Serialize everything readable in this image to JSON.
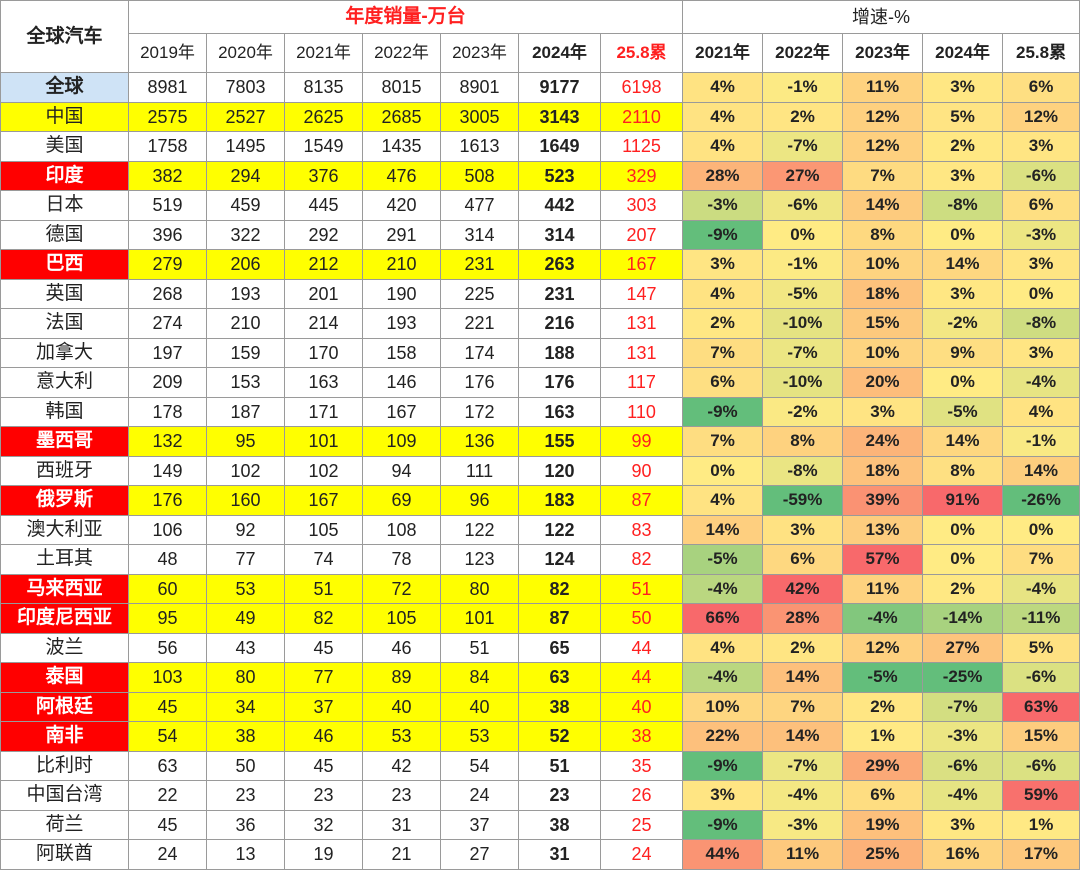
{
  "chart_data": {
    "type": "table",
    "corner_label": "全球汽车",
    "sales_title": "年度销量-万台",
    "growth_title": "增速-%",
    "sales_columns": [
      "2019年",
      "2020年",
      "2021年",
      "2022年",
      "2023年",
      "2024年",
      "25.8累"
    ],
    "growth_columns": [
      "2021年",
      "2022年",
      "2023年",
      "2024年",
      "25.8累"
    ],
    "rows": [
      {
        "name": "全球",
        "style": "world",
        "sales": [
          8981,
          7803,
          8135,
          8015,
          8901,
          9177,
          6198
        ],
        "growth": [
          "4%",
          "-1%",
          "11%",
          "3%",
          "6%"
        ]
      },
      {
        "name": "中国",
        "style": "yellow",
        "sales": [
          2575,
          2527,
          2625,
          2685,
          3005,
          3143,
          2110
        ],
        "growth": [
          "4%",
          "2%",
          "12%",
          "5%",
          "12%"
        ]
      },
      {
        "name": "美国",
        "style": "plain",
        "sales": [
          1758,
          1495,
          1549,
          1435,
          1613,
          1649,
          1125
        ],
        "growth": [
          "4%",
          "-7%",
          "12%",
          "2%",
          "3%"
        ]
      },
      {
        "name": "印度",
        "style": "red",
        "sales": [
          382,
          294,
          376,
          476,
          508,
          523,
          329
        ],
        "growth": [
          "28%",
          "27%",
          "7%",
          "3%",
          "-6%"
        ]
      },
      {
        "name": "日本",
        "style": "plain",
        "sales": [
          519,
          459,
          445,
          420,
          477,
          442,
          303
        ],
        "growth": [
          "-3%",
          "-6%",
          "14%",
          "-8%",
          "6%"
        ]
      },
      {
        "name": "德国",
        "style": "plain",
        "sales": [
          396,
          322,
          292,
          291,
          314,
          314,
          207
        ],
        "growth": [
          "-9%",
          "0%",
          "8%",
          "0%",
          "-3%"
        ]
      },
      {
        "name": "巴西",
        "style": "red",
        "sales": [
          279,
          206,
          212,
          210,
          231,
          263,
          167
        ],
        "growth": [
          "3%",
          "-1%",
          "10%",
          "14%",
          "3%"
        ]
      },
      {
        "name": "英国",
        "style": "plain",
        "sales": [
          268,
          193,
          201,
          190,
          225,
          231,
          147
        ],
        "growth": [
          "4%",
          "-5%",
          "18%",
          "3%",
          "0%"
        ]
      },
      {
        "name": "法国",
        "style": "plain",
        "sales": [
          274,
          210,
          214,
          193,
          221,
          216,
          131
        ],
        "growth": [
          "2%",
          "-10%",
          "15%",
          "-2%",
          "-8%"
        ]
      },
      {
        "name": "加拿大",
        "style": "plain",
        "sales": [
          197,
          159,
          170,
          158,
          174,
          188,
          131
        ],
        "growth": [
          "7%",
          "-7%",
          "10%",
          "9%",
          "3%"
        ]
      },
      {
        "name": "意大利",
        "style": "plain",
        "sales": [
          209,
          153,
          163,
          146,
          176,
          176,
          117
        ],
        "growth": [
          "6%",
          "-10%",
          "20%",
          "0%",
          "-4%"
        ]
      },
      {
        "name": "韩国",
        "style": "plain",
        "sales": [
          178,
          187,
          171,
          167,
          172,
          163,
          110
        ],
        "growth": [
          "-9%",
          "-2%",
          "3%",
          "-5%",
          "4%"
        ]
      },
      {
        "name": "墨西哥",
        "style": "red",
        "sales": [
          132,
          95,
          101,
          109,
          136,
          155,
          99
        ],
        "growth": [
          "7%",
          "8%",
          "24%",
          "14%",
          "-1%"
        ]
      },
      {
        "name": "西班牙",
        "style": "plain",
        "sales": [
          149,
          102,
          102,
          94,
          111,
          120,
          90
        ],
        "growth": [
          "0%",
          "-8%",
          "18%",
          "8%",
          "14%"
        ]
      },
      {
        "name": "俄罗斯",
        "style": "red",
        "sales": [
          176,
          160,
          167,
          69,
          96,
          183,
          87
        ],
        "growth": [
          "4%",
          "-59%",
          "39%",
          "91%",
          "-26%"
        ]
      },
      {
        "name": "澳大利亚",
        "style": "plain",
        "sales": [
          106,
          92,
          105,
          108,
          122,
          122,
          83
        ],
        "growth": [
          "14%",
          "3%",
          "13%",
          "0%",
          "0%"
        ]
      },
      {
        "name": "土耳其",
        "style": "plain",
        "sales": [
          48,
          77,
          74,
          78,
          123,
          124,
          82
        ],
        "growth": [
          "-5%",
          "6%",
          "57%",
          "0%",
          "7%"
        ]
      },
      {
        "name": "马来西亚",
        "style": "red",
        "sales": [
          60,
          53,
          51,
          72,
          80,
          82,
          51
        ],
        "growth": [
          "-4%",
          "42%",
          "11%",
          "2%",
          "-4%"
        ]
      },
      {
        "name": "印度尼西亚",
        "style": "red",
        "sales": [
          95,
          49,
          82,
          105,
          101,
          87,
          50
        ],
        "growth": [
          "66%",
          "28%",
          "-4%",
          "-14%",
          "-11%"
        ]
      },
      {
        "name": "波兰",
        "style": "plain",
        "sales": [
          56,
          43,
          45,
          46,
          51,
          65,
          44
        ],
        "growth": [
          "4%",
          "2%",
          "12%",
          "27%",
          "5%"
        ]
      },
      {
        "name": "泰国",
        "style": "red",
        "sales": [
          103,
          80,
          77,
          89,
          84,
          63,
          44
        ],
        "growth": [
          "-4%",
          "14%",
          "-5%",
          "-25%",
          "-6%"
        ]
      },
      {
        "name": "阿根廷",
        "style": "red",
        "sales": [
          45,
          34,
          37,
          40,
          40,
          38,
          40
        ],
        "growth": [
          "10%",
          "7%",
          "2%",
          "-7%",
          "63%"
        ]
      },
      {
        "name": "南非",
        "style": "red",
        "sales": [
          54,
          38,
          46,
          53,
          53,
          52,
          38
        ],
        "growth": [
          "22%",
          "14%",
          "1%",
          "-3%",
          "15%"
        ]
      },
      {
        "name": "比利时",
        "style": "plain",
        "sales": [
          63,
          50,
          45,
          42,
          54,
          51,
          35
        ],
        "growth": [
          "-9%",
          "-7%",
          "29%",
          "-6%",
          "-6%"
        ]
      },
      {
        "name": "中国台湾",
        "style": "plain",
        "sales": [
          22,
          23,
          23,
          23,
          24,
          23,
          26
        ],
        "growth": [
          "3%",
          "-4%",
          "6%",
          "-4%",
          "59%"
        ]
      },
      {
        "name": "荷兰",
        "style": "plain",
        "sales": [
          45,
          36,
          32,
          31,
          37,
          38,
          25
        ],
        "growth": [
          "-9%",
          "-3%",
          "19%",
          "3%",
          "1%"
        ]
      },
      {
        "name": "阿联酋",
        "style": "plain",
        "sales": [
          24,
          13,
          19,
          21,
          27,
          31,
          24
        ],
        "growth": [
          "44%",
          "11%",
          "25%",
          "16%",
          "17%"
        ]
      }
    ],
    "colors": {
      "title_red": "#ff2020",
      "highlight_yellow": "#ffff00",
      "highlight_red": "#ff0000",
      "world_blue": "#cfe3f6",
      "heat_low": "#63be7b",
      "heat_mid": "#ffeb84",
      "heat_high": "#f8696b"
    }
  }
}
